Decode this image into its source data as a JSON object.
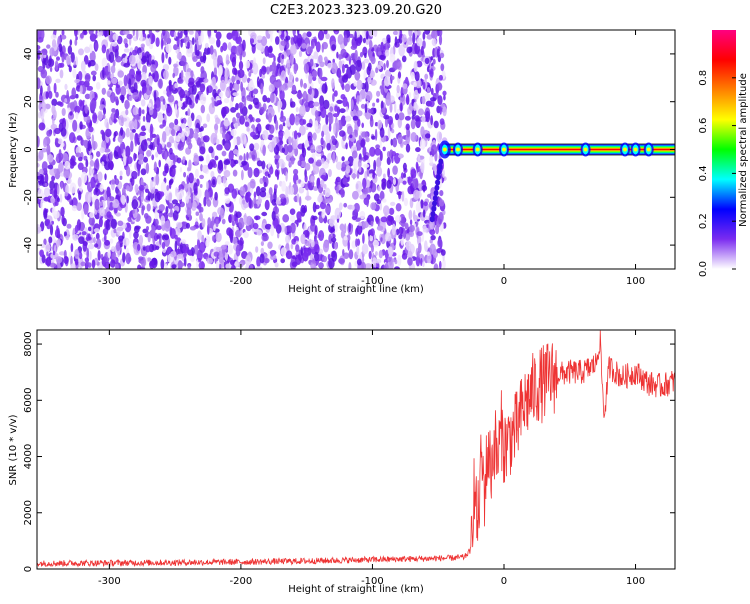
{
  "chart_data": [
    {
      "type": "heatmap",
      "title": "C2E3.2023.323.09.20.G20",
      "xlabel": "Height of straight line (km)",
      "ylabel": "Frequency (Hz)",
      "xlim": [
        -355,
        130
      ],
      "ylim": [
        -50,
        50
      ],
      "xticks": [
        -300,
        -200,
        -100,
        0,
        100
      ],
      "yticks": [
        -40,
        -20,
        0,
        20,
        40
      ],
      "noise_region_x": [
        -355,
        -45
      ],
      "signal_tone": {
        "frequency_hz": 0,
        "start_x": -45,
        "end_x": 130,
        "hotspots_x": [
          -45,
          -35,
          -20,
          0,
          62,
          92,
          100,
          110
        ]
      },
      "colorbar": {
        "label": "Normalized spectral amplitude",
        "ticks": [
          0.0,
          0.2,
          0.4,
          0.6,
          0.8
        ],
        "ticklabels": [
          "0.0",
          "0.2",
          "0.4",
          "0.6",
          "0.8"
        ],
        "range": [
          0,
          1
        ],
        "colormap": [
          "#ffffff",
          "#7b2cf0",
          "#0000ff",
          "#00ffff",
          "#00ff00",
          "#ffff00",
          "#ff8000",
          "#ff0000",
          "#ff0080"
        ]
      }
    },
    {
      "type": "line",
      "xlabel": "Height of straight line (km)",
      "ylabel": "SNR (10 * v/v)",
      "xlim": [
        -355,
        130
      ],
      "ylim": [
        0,
        8500
      ],
      "xticks": [
        -300,
        -200,
        -100,
        0,
        100
      ],
      "yticks": [
        0,
        2000,
        4000,
        6000,
        8000
      ],
      "color": "#ee3333",
      "series": [
        {
          "x": [
            -355,
            -300,
            -250,
            -200,
            -150,
            -100,
            -60,
            -40,
            -30,
            -25,
            -23,
            -20,
            -17,
            -15,
            -12,
            -10,
            -7,
            -5,
            -2,
            0,
            5,
            10,
            15,
            20,
            25,
            30,
            35,
            40,
            50,
            60,
            70,
            73,
            76,
            80,
            90,
            100,
            110,
            120,
            130
          ],
          "y": [
            200,
            215,
            230,
            250,
            285,
            330,
            370,
            390,
            420,
            700,
            3000,
            1500,
            4000,
            2700,
            4300,
            3500,
            4600,
            3800,
            5000,
            4300,
            4700,
            5000,
            5800,
            6200,
            6500,
            6600,
            6800,
            6900,
            7000,
            7000,
            7300,
            8200,
            5400,
            7200,
            6800,
            7000,
            6600,
            6500,
            6700
          ]
        }
      ],
      "noise_amplitude_before_x": [
        -355,
        -22,
        110
      ],
      "noise_amplitude_after": 450
    }
  ]
}
